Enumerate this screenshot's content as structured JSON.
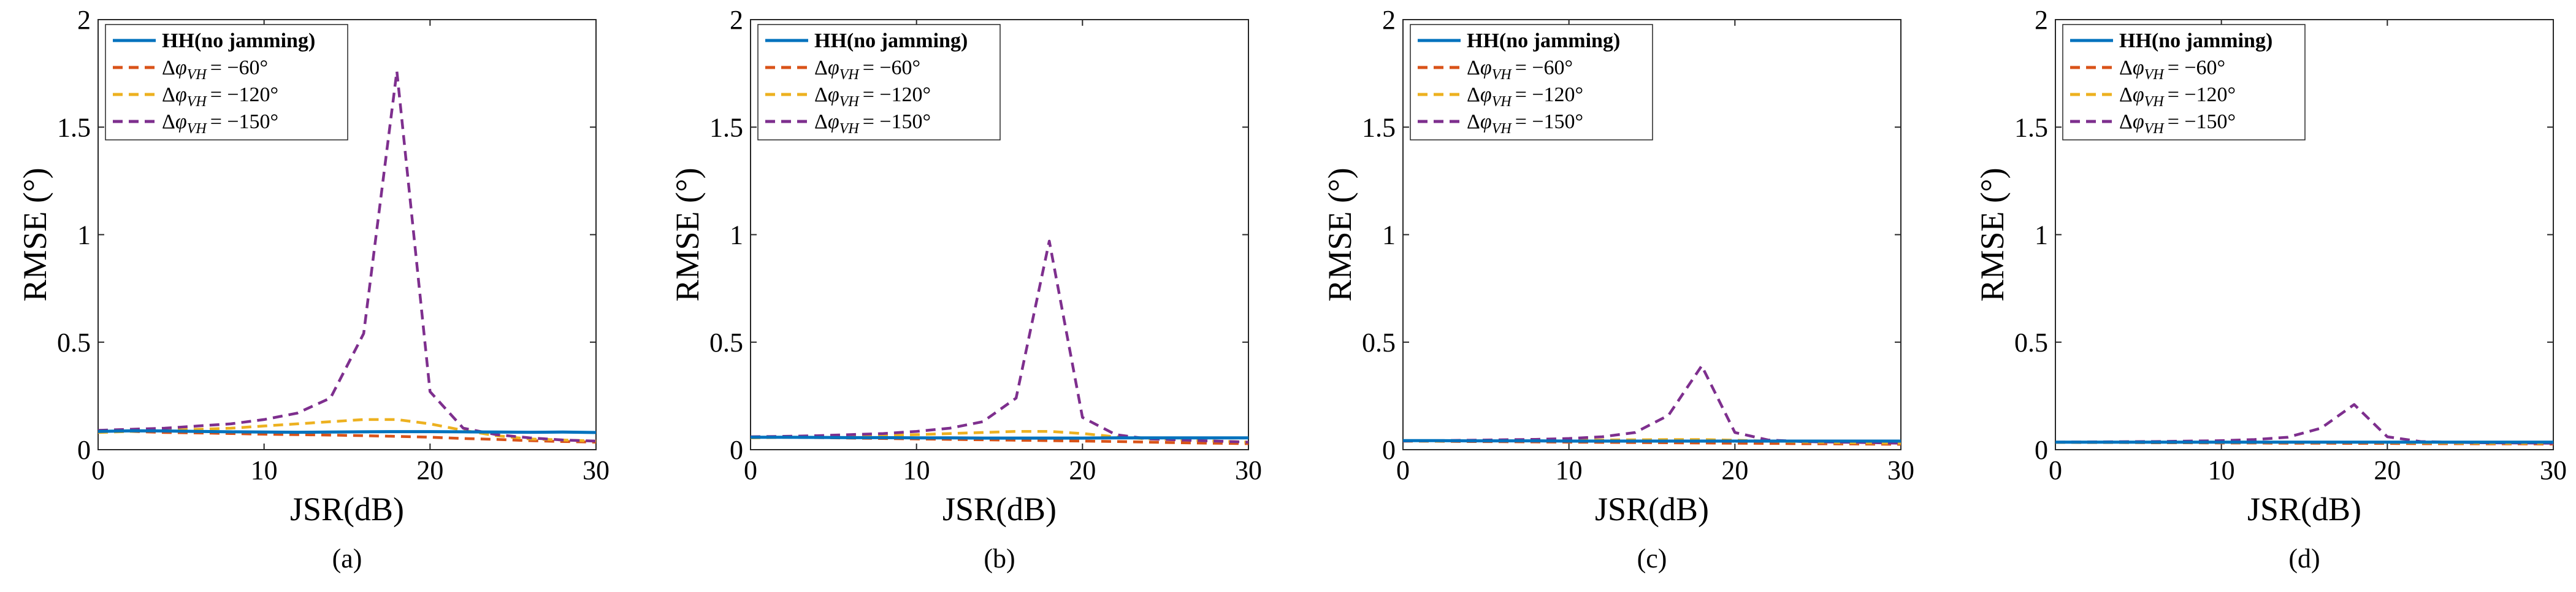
{
  "colors": {
    "hh": "#0072bd",
    "d60": "#d95319",
    "d120": "#edb120",
    "d150": "#7e2f8e"
  },
  "legend_labels": {
    "hh": "HH(no jamming)",
    "delta": "Δ",
    "phi": "φ",
    "sub": "VH",
    "d60_value": "= −60°",
    "d120_value": "= −120°",
    "d150_value": "= −150°"
  },
  "chart_data": [
    {
      "type": "line",
      "caption": "(a)",
      "xlabel": "JSR(dB)",
      "ylabel": "RMSE (°)",
      "xlim": [
        0,
        30
      ],
      "ylim": [
        0,
        2
      ],
      "xticks": [
        0,
        10,
        20,
        30
      ],
      "yticks": [
        0,
        0.5,
        1,
        1.5,
        2
      ],
      "ytick_labels": [
        "0",
        "0.5",
        "1",
        "1.5",
        "2"
      ],
      "legend_position": "top-left",
      "x": [
        0,
        2,
        4,
        6,
        8,
        10,
        12,
        14,
        16,
        18,
        20,
        22,
        24,
        26,
        28,
        30
      ],
      "series": [
        {
          "key": "hh",
          "name": "HH(no jamming)",
          "style": "solid",
          "values": [
            0.085,
            0.088,
            0.087,
            0.085,
            0.083,
            0.082,
            0.081,
            0.082,
            0.083,
            0.084,
            0.084,
            0.083,
            0.082,
            0.081,
            0.082,
            0.08
          ]
        },
        {
          "key": "d60",
          "name": "Δφ_VH = −60°",
          "style": "dashed",
          "values": [
            0.09,
            0.085,
            0.08,
            0.078,
            0.075,
            0.072,
            0.07,
            0.068,
            0.065,
            0.062,
            0.058,
            0.052,
            0.048,
            0.042,
            0.038,
            0.035
          ]
        },
        {
          "key": "d120",
          "name": "Δφ_VH = −120°",
          "style": "dashed",
          "values": [
            0.08,
            0.085,
            0.09,
            0.095,
            0.1,
            0.11,
            0.12,
            0.13,
            0.14,
            0.14,
            0.12,
            0.09,
            0.065,
            0.05,
            0.045,
            0.04
          ]
        },
        {
          "key": "d150",
          "name": "Δφ_VH = −150°",
          "style": "dashed",
          "values": [
            0.09,
            0.095,
            0.1,
            0.11,
            0.12,
            0.14,
            0.17,
            0.24,
            0.54,
            1.76,
            0.27,
            0.1,
            0.07,
            0.055,
            0.045,
            0.04
          ]
        }
      ]
    },
    {
      "type": "line",
      "caption": "(b)",
      "xlabel": "JSR(dB)",
      "ylabel": "RMSE (°)",
      "xlim": [
        0,
        30
      ],
      "ylim": [
        0,
        2
      ],
      "xticks": [
        0,
        10,
        20,
        30
      ],
      "yticks": [
        0,
        0.5,
        1,
        1.5,
        2
      ],
      "ytick_labels": [
        "0",
        "0.5",
        "1",
        "1.5",
        "2"
      ],
      "legend_position": "top-left",
      "x": [
        0,
        2,
        4,
        6,
        8,
        10,
        12,
        14,
        16,
        18,
        20,
        22,
        24,
        26,
        28,
        30
      ],
      "series": [
        {
          "key": "hh",
          "name": "HH(no jamming)",
          "style": "solid",
          "values": [
            0.058,
            0.058,
            0.057,
            0.056,
            0.056,
            0.055,
            0.055,
            0.054,
            0.054,
            0.054,
            0.054,
            0.055,
            0.055,
            0.055,
            0.055,
            0.055
          ]
        },
        {
          "key": "d60",
          "name": "Δφ_VH = −60°",
          "style": "dashed",
          "values": [
            0.06,
            0.058,
            0.056,
            0.054,
            0.052,
            0.05,
            0.048,
            0.046,
            0.044,
            0.042,
            0.04,
            0.038,
            0.035,
            0.032,
            0.03,
            0.028
          ]
        },
        {
          "key": "d120",
          "name": "Δφ_VH = −120°",
          "style": "dashed",
          "values": [
            0.055,
            0.057,
            0.06,
            0.063,
            0.066,
            0.07,
            0.075,
            0.08,
            0.085,
            0.085,
            0.075,
            0.06,
            0.05,
            0.045,
            0.04,
            0.035
          ]
        },
        {
          "key": "d150",
          "name": "Δφ_VH = −150°",
          "style": "dashed",
          "values": [
            0.06,
            0.062,
            0.065,
            0.07,
            0.075,
            0.085,
            0.1,
            0.13,
            0.24,
            0.97,
            0.15,
            0.07,
            0.05,
            0.045,
            0.04,
            0.035
          ]
        }
      ]
    },
    {
      "type": "line",
      "caption": "(c)",
      "xlabel": "JSR(dB)",
      "ylabel": "RMSE (°)",
      "xlim": [
        0,
        30
      ],
      "ylim": [
        0,
        2
      ],
      "xticks": [
        0,
        10,
        20,
        30
      ],
      "yticks": [
        0,
        0.5,
        1,
        1.5,
        2
      ],
      "ytick_labels": [
        "0",
        "0.5",
        "1",
        "1.5",
        "2"
      ],
      "legend_position": "top-left",
      "x": [
        0,
        2,
        4,
        6,
        8,
        10,
        12,
        14,
        16,
        18,
        20,
        22,
        24,
        26,
        28,
        30
      ],
      "series": [
        {
          "key": "hh",
          "name": "HH(no jamming)",
          "style": "solid",
          "values": [
            0.042,
            0.042,
            0.041,
            0.041,
            0.041,
            0.04,
            0.04,
            0.04,
            0.04,
            0.04,
            0.04,
            0.04,
            0.04,
            0.04,
            0.04,
            0.04
          ]
        },
        {
          "key": "d60",
          "name": "Δφ_VH = −60°",
          "style": "dashed",
          "values": [
            0.04,
            0.039,
            0.038,
            0.037,
            0.036,
            0.035,
            0.034,
            0.033,
            0.032,
            0.031,
            0.03,
            0.029,
            0.028,
            0.027,
            0.026,
            0.025
          ]
        },
        {
          "key": "d120",
          "name": "Δφ_VH = −120°",
          "style": "dashed",
          "values": [
            0.04,
            0.04,
            0.041,
            0.042,
            0.043,
            0.044,
            0.045,
            0.046,
            0.047,
            0.047,
            0.044,
            0.04,
            0.036,
            0.033,
            0.031,
            0.03
          ]
        },
        {
          "key": "d150",
          "name": "Δφ_VH = −150°",
          "style": "dashed",
          "values": [
            0.04,
            0.042,
            0.044,
            0.046,
            0.048,
            0.052,
            0.06,
            0.08,
            0.16,
            0.39,
            0.08,
            0.045,
            0.038,
            0.035,
            0.033,
            0.03
          ]
        }
      ]
    },
    {
      "type": "line",
      "caption": "(d)",
      "xlabel": "JSR(dB)",
      "ylabel": "RMSE (°)",
      "xlim": [
        0,
        30
      ],
      "ylim": [
        0,
        2
      ],
      "xticks": [
        0,
        10,
        20,
        30
      ],
      "yticks": [
        0,
        0.5,
        1,
        1.5,
        2
      ],
      "ytick_labels": [
        "0",
        "0.5",
        "1",
        "1.5",
        "2"
      ],
      "legend_position": "top-left",
      "x": [
        0,
        2,
        4,
        6,
        8,
        10,
        12,
        14,
        16,
        18,
        20,
        22,
        24,
        26,
        28,
        30
      ],
      "series": [
        {
          "key": "hh",
          "name": "HH(no jamming)",
          "style": "solid",
          "values": [
            0.035,
            0.035,
            0.035,
            0.035,
            0.035,
            0.035,
            0.035,
            0.035,
            0.035,
            0.035,
            0.035,
            0.035,
            0.035,
            0.035,
            0.035,
            0.035
          ]
        },
        {
          "key": "d60",
          "name": "Δφ_VH = −60°",
          "style": "dashed",
          "values": [
            0.034,
            0.033,
            0.033,
            0.032,
            0.032,
            0.031,
            0.031,
            0.03,
            0.03,
            0.029,
            0.029,
            0.028,
            0.028,
            0.027,
            0.027,
            0.026
          ]
        },
        {
          "key": "d120",
          "name": "Δφ_VH = −120°",
          "style": "dashed",
          "values": [
            0.034,
            0.034,
            0.034,
            0.034,
            0.034,
            0.034,
            0.034,
            0.034,
            0.034,
            0.034,
            0.033,
            0.032,
            0.031,
            0.03,
            0.03,
            0.03
          ]
        },
        {
          "key": "d150",
          "name": "Δφ_VH = −150°",
          "style": "dashed",
          "values": [
            0.035,
            0.036,
            0.037,
            0.038,
            0.04,
            0.042,
            0.047,
            0.058,
            0.1,
            0.21,
            0.06,
            0.038,
            0.034,
            0.032,
            0.031,
            0.03
          ]
        }
      ]
    }
  ]
}
